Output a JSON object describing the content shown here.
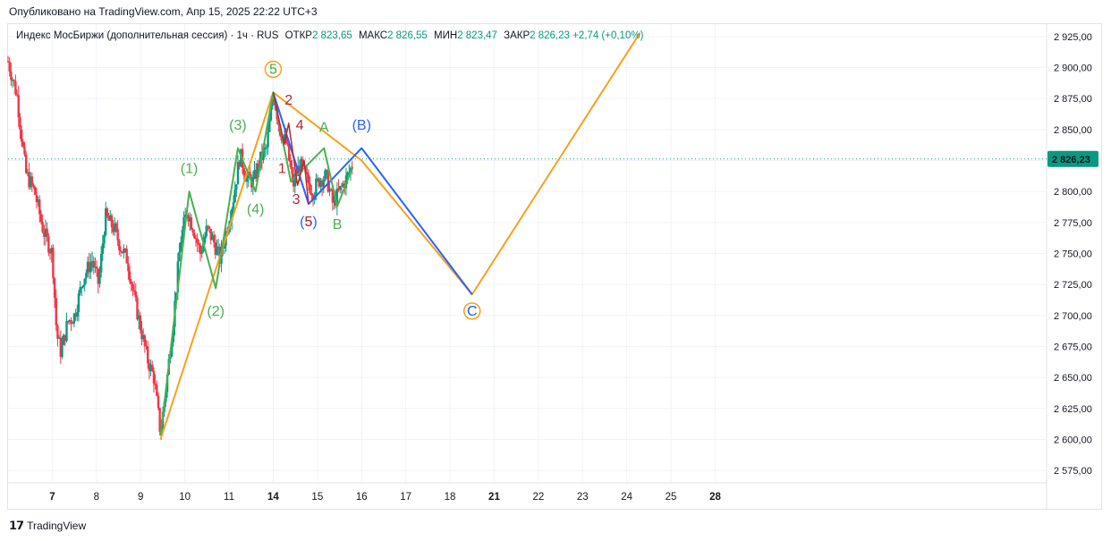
{
  "header": {
    "published": "Опубликовано на TradingView.com, Апр 15, 2025 22:22 UTC+3"
  },
  "legend": {
    "symbol": "Индекс МосБиржи (дополнительная сессия) · 1ч · RUS",
    "open_label": "ОТКР",
    "open": "2 823,65",
    "high_label": "МАКС",
    "high": "2 826,55",
    "low_label": "МИН",
    "low": "2 823,47",
    "close_label": "ЗАКР",
    "close": "2 826,23",
    "change": "+2,74 (+0,10%)"
  },
  "footer": {
    "logo": "𝟭𝟳",
    "brand": "TradingView"
  },
  "colors": {
    "up": "#089981",
    "down": "#f23645",
    "orange": "#f7a01d",
    "green": "#4caf50",
    "blue": "#2962ff",
    "dark_red": "#b22833"
  },
  "chart_data": {
    "type": "candlestick",
    "y_axis": {
      "min": 2565,
      "max": 2935,
      "ticks": [
        2575,
        2600,
        2625,
        2650,
        2675,
        2700,
        2725,
        2750,
        2775,
        2800,
        2825,
        2850,
        2875,
        2900,
        2925
      ],
      "tick_labels": [
        "2 575,00",
        "2 600,00",
        "2 625,00",
        "2 650,00",
        "2 675,00",
        "2 700,00",
        "2 725,00",
        "2 750,00",
        "2 775,00",
        "2 800,00",
        "2 825,00",
        "2 850,00",
        "2 875,00",
        "2 900,00",
        "2 925,00"
      ]
    },
    "x_axis": {
      "min": 6.0,
      "max": 29.5,
      "ticks": [
        7,
        8,
        9,
        10,
        11,
        14,
        15,
        16,
        17,
        18,
        21,
        22,
        23,
        24,
        25,
        28
      ],
      "tick_positions": [
        7,
        8,
        9,
        10,
        11,
        12,
        13,
        14,
        15,
        16,
        17,
        18,
        19,
        20,
        21,
        22
      ],
      "bold": [
        7,
        14,
        21,
        28
      ]
    },
    "last_price": 2826.23,
    "last_price_label": "2 826,23",
    "price_path": [
      [
        6.0,
        2905
      ],
      [
        6.2,
        2878
      ],
      [
        6.4,
        2815
      ],
      [
        6.6,
        2800
      ],
      [
        6.8,
        2768
      ],
      [
        7.0,
        2750
      ],
      [
        7.1,
        2685
      ],
      [
        7.2,
        2670
      ],
      [
        7.35,
        2695
      ],
      [
        7.5,
        2700
      ],
      [
        7.7,
        2730
      ],
      [
        7.9,
        2745
      ],
      [
        8.05,
        2725
      ],
      [
        8.2,
        2780
      ],
      [
        8.4,
        2770
      ],
      [
        8.55,
        2755
      ],
      [
        8.7,
        2745
      ],
      [
        8.85,
        2715
      ],
      [
        9.0,
        2690
      ],
      [
        9.15,
        2665
      ],
      [
        9.3,
        2650
      ],
      [
        9.45,
        2605
      ],
      [
        9.6,
        2650
      ],
      [
        9.75,
        2700
      ],
      [
        9.9,
        2760
      ],
      [
        10.05,
        2785
      ],
      [
        10.2,
        2770
      ],
      [
        10.35,
        2750
      ],
      [
        10.5,
        2770
      ],
      [
        10.65,
        2760
      ],
      [
        10.8,
        2745
      ],
      [
        10.95,
        2770
      ],
      [
        11.1,
        2795
      ],
      [
        11.25,
        2830
      ],
      [
        11.4,
        2810
      ],
      [
        11.55,
        2808
      ],
      [
        11.7,
        2825
      ],
      [
        11.85,
        2835
      ],
      [
        12.0,
        2880
      ],
      [
        12.15,
        2850
      ],
      [
        12.3,
        2838
      ],
      [
        12.45,
        2805
      ],
      [
        12.6,
        2822
      ],
      [
        12.75,
        2810
      ],
      [
        12.9,
        2800
      ],
      [
        13.05,
        2810
      ],
      [
        13.2,
        2812
      ],
      [
        13.35,
        2790
      ],
      [
        13.5,
        2800
      ],
      [
        13.65,
        2810
      ],
      [
        13.8,
        2822
      ]
    ],
    "waves": {
      "orange": {
        "points": [
          [
            9.45,
            2600
          ],
          [
            12.0,
            2880
          ],
          [
            14.0,
            2825
          ],
          [
            16.5,
            2717
          ],
          [
            20.3,
            2928
          ]
        ],
        "labels": [
          {
            "text": "5",
            "x": 12.0,
            "y": 2895,
            "circled": true
          },
          {
            "text": "C",
            "x": 16.5,
            "y": 2700,
            "circled": true
          }
        ]
      },
      "blue": {
        "points": [
          [
            12.0,
            2880
          ],
          [
            12.8,
            2790
          ],
          [
            14.0,
            2835
          ],
          [
            16.5,
            2717
          ]
        ],
        "labels": [
          {
            "text": "(5)",
            "x": 12.8,
            "y": 2772
          },
          {
            "text": "(B)",
            "x": 14.0,
            "y": 2850
          },
          {
            "text": "C",
            "x": 16.5,
            "y": 2700
          }
        ]
      },
      "green": {
        "points": [
          [
            9.45,
            2603
          ],
          [
            10.1,
            2800
          ],
          [
            10.7,
            2722
          ],
          [
            11.2,
            2835
          ],
          [
            11.6,
            2800
          ],
          [
            12.0,
            2880
          ],
          [
            12.4,
            2808
          ],
          [
            13.15,
            2835
          ],
          [
            13.45,
            2788
          ],
          [
            13.8,
            2820
          ]
        ],
        "labels": [
          {
            "text": "(1)",
            "x": 10.1,
            "y": 2815
          },
          {
            "text": "(2)",
            "x": 10.7,
            "y": 2700
          },
          {
            "text": "(3)",
            "x": 11.2,
            "y": 2850
          },
          {
            "text": "(4)",
            "x": 11.6,
            "y": 2782
          },
          {
            "text": "A",
            "x": 13.15,
            "y": 2848
          },
          {
            "text": "B",
            "x": 13.45,
            "y": 2770
          },
          {
            "text": "5",
            "x": 12.0,
            "y": 2895
          }
        ]
      },
      "red": {
        "points": [
          [
            12.0,
            2880
          ],
          [
            12.25,
            2838
          ],
          [
            12.35,
            2855
          ],
          [
            12.55,
            2805
          ],
          [
            12.7,
            2825
          ],
          [
            12.8,
            2790
          ]
        ],
        "labels": [
          {
            "text": "1",
            "x": 12.2,
            "y": 2815
          },
          {
            "text": "2",
            "x": 12.35,
            "y": 2870
          },
          {
            "text": "3",
            "x": 12.52,
            "y": 2790
          },
          {
            "text": "4",
            "x": 12.6,
            "y": 2850
          },
          {
            "text": "5",
            "x": 12.8,
            "y": 2772
          }
        ]
      }
    }
  }
}
